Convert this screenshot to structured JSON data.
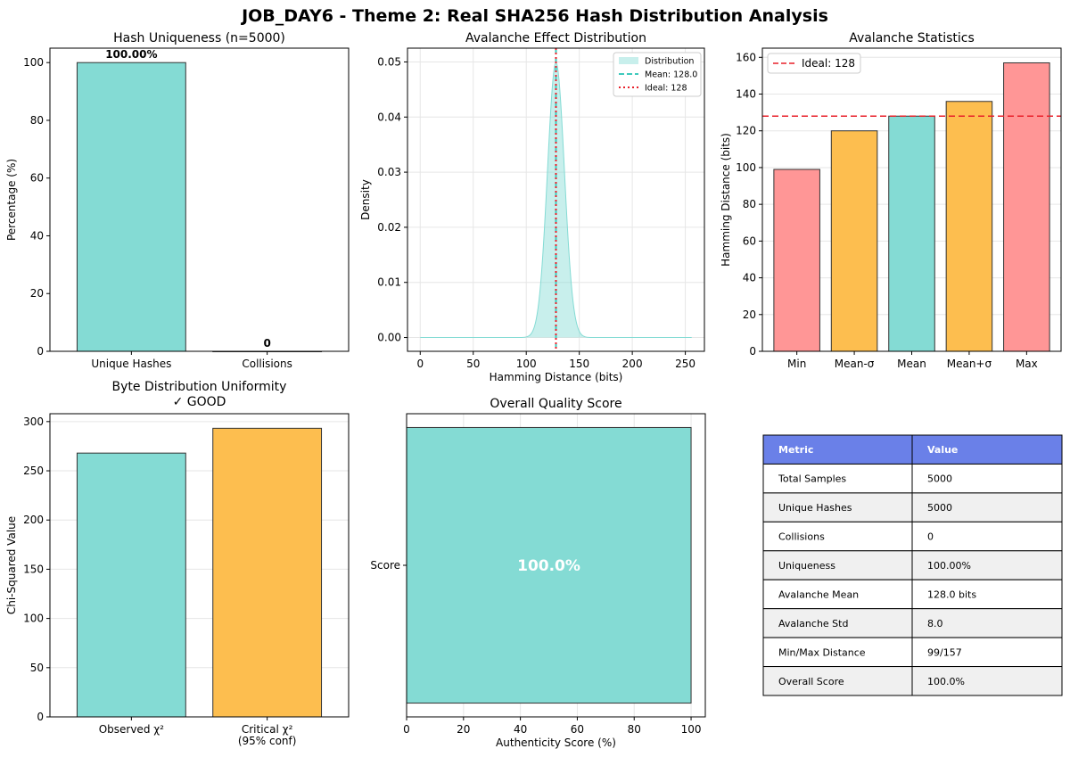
{
  "figure": {
    "suptitle": "JOB_DAY6 - Theme 2: Real SHA256 Hash Distribution Analysis"
  },
  "colors": {
    "teal": "#84dbd4",
    "orange": "#fdbe4f",
    "salmon": "#ff9696",
    "header_blue": "#6a80e8",
    "mean_line": "#3ec9bc",
    "ideal_line": "#e8202a",
    "row_shade": "#f0f0f0"
  },
  "chart_data": [
    {
      "id": "uniqueness",
      "type": "bar",
      "title": "Hash Uniqueness (n=5000)",
      "xlabel": "",
      "ylabel": "Percentage (%)",
      "categories": [
        "Unique Hashes",
        "Collisions"
      ],
      "values": [
        100.0,
        0
      ],
      "data_labels": [
        "100.00%",
        "0"
      ],
      "colors": [
        "teal",
        "teal"
      ],
      "ylim": [
        0,
        105
      ],
      "yticks": [
        0,
        20,
        40,
        60,
        80,
        100
      ],
      "grid": false
    },
    {
      "id": "avalanche_dist",
      "type": "area",
      "title": "Avalanche Effect Distribution",
      "xlabel": "Hamming Distance (bits)",
      "ylabel": "Density",
      "xlim": [
        -12,
        268
      ],
      "ylim": [
        -0.0025,
        0.0525
      ],
      "xticks": [
        0,
        50,
        100,
        150,
        200,
        250
      ],
      "yticks": [
        0.0,
        0.01,
        0.02,
        0.03,
        0.04,
        0.05
      ],
      "ytick_labels": [
        "0.00",
        "0.01",
        "0.02",
        "0.03",
        "0.04",
        "0.05"
      ],
      "distribution": {
        "mean": 128.0,
        "std": 8.0,
        "x_range": [
          0,
          256
        ]
      },
      "mean_line": 128.0,
      "ideal_line": 128,
      "legend": {
        "position": "top-right",
        "items": [
          {
            "label": "Distribution",
            "style": "patch"
          },
          {
            "label": "Mean: 128.0",
            "style": "dashed"
          },
          {
            "label": "Ideal: 128",
            "style": "dotted"
          }
        ]
      },
      "grid": true
    },
    {
      "id": "avalanche_stats",
      "type": "bar",
      "title": "Avalanche Statistics",
      "xlabel": "",
      "ylabel": "Hamming Distance (bits)",
      "categories": [
        "Min",
        "Mean-σ",
        "Mean",
        "Mean+σ",
        "Max"
      ],
      "values": [
        99,
        120,
        128,
        136,
        157
      ],
      "colors": [
        "salmon",
        "orange",
        "teal",
        "orange",
        "salmon"
      ],
      "ylim": [
        0,
        165
      ],
      "yticks": [
        0,
        20,
        40,
        60,
        80,
        100,
        120,
        140,
        160
      ],
      "ideal_line": 128,
      "legend": {
        "position": "top-left",
        "items": [
          {
            "label": "Ideal: 128",
            "style": "dashed"
          }
        ]
      },
      "grid": true
    },
    {
      "id": "byte_uniformity",
      "type": "bar",
      "title": "Byte Distribution Uniformity",
      "subtitle": "✓ GOOD",
      "xlabel": "",
      "ylabel": "Chi-Squared Value",
      "categories": [
        "Observed χ²",
        "Critical χ²\n(95% conf)"
      ],
      "values": [
        268,
        293.2
      ],
      "colors": [
        "teal",
        "orange"
      ],
      "ylim": [
        0,
        308
      ],
      "yticks": [
        0,
        50,
        100,
        150,
        200,
        250,
        300
      ],
      "grid": true
    },
    {
      "id": "quality_score",
      "type": "bar",
      "orientation": "horizontal",
      "title": "Overall Quality Score",
      "xlabel": "Authenticity Score (%)",
      "ylabel": "",
      "categories": [
        "Score"
      ],
      "values": [
        100.0
      ],
      "data_labels": [
        "100.0%"
      ],
      "colors": [
        "teal"
      ],
      "xlim": [
        0,
        105
      ],
      "xticks": [
        0,
        20,
        40,
        60,
        80,
        100
      ],
      "grid": true
    },
    {
      "id": "summary_table",
      "type": "table",
      "columns": [
        "Metric",
        "Value"
      ],
      "rows": [
        [
          "Total Samples",
          "5000"
        ],
        [
          "Unique Hashes",
          "5000"
        ],
        [
          "Collisions",
          "0"
        ],
        [
          "Uniqueness",
          "100.00%"
        ],
        [
          "Avalanche Mean",
          "128.0 bits"
        ],
        [
          "Avalanche Std",
          "8.0"
        ],
        [
          "Min/Max Distance",
          "99/157"
        ],
        [
          "Overall Score",
          "100.0%"
        ]
      ]
    }
  ]
}
